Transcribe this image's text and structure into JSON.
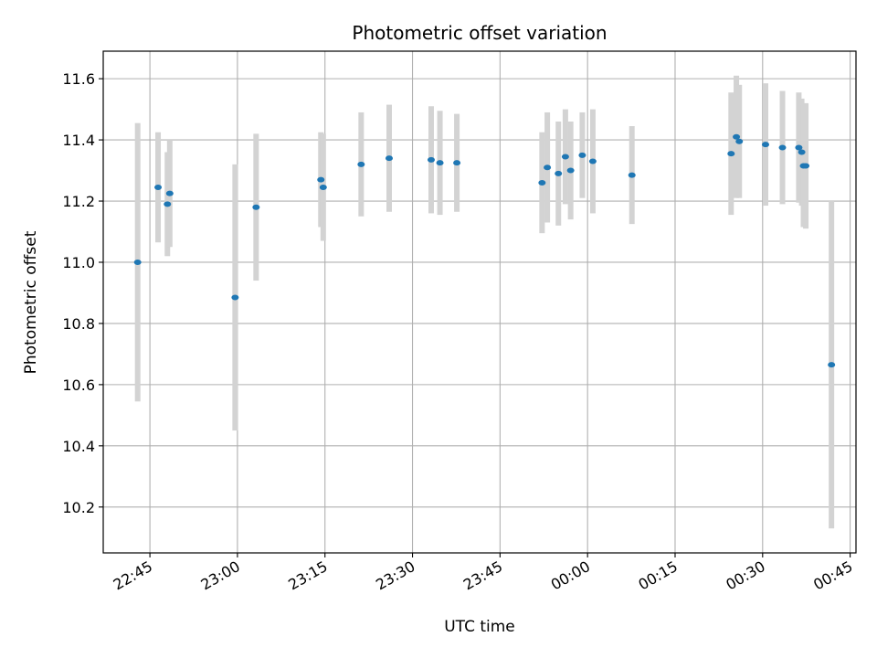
{
  "chart_data": {
    "type": "scatter",
    "title": "Photometric offset variation",
    "xlabel": "UTC time",
    "ylabel": "Photometric offset",
    "x_ticks": [
      "22:45",
      "23:00",
      "23:15",
      "23:30",
      "23:45",
      "00:00",
      "00:15",
      "00:30",
      "00:45"
    ],
    "x_tick_minutes": [
      0,
      15,
      30,
      45,
      60,
      75,
      90,
      105,
      120
    ],
    "y_ticks": [
      "10.2",
      "10.4",
      "10.6",
      "10.8",
      "11.0",
      "11.2",
      "11.4",
      "11.6"
    ],
    "y_tick_values": [
      10.2,
      10.4,
      10.6,
      10.8,
      11.0,
      11.2,
      11.4,
      11.6
    ],
    "xlim_minutes": [
      -8.0,
      121.0
    ],
    "ylim": [
      10.05,
      11.69
    ],
    "grid": true,
    "colors": {
      "point": "#1f77b4",
      "errorbar": "#d3d3d3",
      "grid": "#b0b0b0"
    },
    "points": [
      {
        "t": -2.1,
        "y": 11.0,
        "err": 0.455
      },
      {
        "t": 1.4,
        "y": 11.245,
        "err": 0.18
      },
      {
        "t": 3.0,
        "y": 11.19,
        "err": 0.17
      },
      {
        "t": 3.4,
        "y": 11.225,
        "err": 0.175
      },
      {
        "t": 14.6,
        "y": 10.885,
        "err": 0.435
      },
      {
        "t": 18.2,
        "y": 11.18,
        "err": 0.24
      },
      {
        "t": 29.3,
        "y": 11.27,
        "err": 0.155
      },
      {
        "t": 29.7,
        "y": 11.245,
        "err": 0.175
      },
      {
        "t": 36.2,
        "y": 11.32,
        "err": 0.17
      },
      {
        "t": 41.0,
        "y": 11.34,
        "err": 0.175
      },
      {
        "t": 48.2,
        "y": 11.335,
        "err": 0.175
      },
      {
        "t": 49.7,
        "y": 11.325,
        "err": 0.17
      },
      {
        "t": 52.6,
        "y": 11.325,
        "err": 0.16
      },
      {
        "t": 67.2,
        "y": 11.26,
        "err": 0.165
      },
      {
        "t": 68.1,
        "y": 11.31,
        "err": 0.18
      },
      {
        "t": 70.0,
        "y": 11.29,
        "err": 0.17
      },
      {
        "t": 71.2,
        "y": 11.345,
        "err": 0.155
      },
      {
        "t": 72.1,
        "y": 11.3,
        "err": 0.16
      },
      {
        "t": 74.1,
        "y": 11.35,
        "err": 0.14
      },
      {
        "t": 75.9,
        "y": 11.33,
        "err": 0.17
      },
      {
        "t": 82.6,
        "y": 11.285,
        "err": 0.16
      },
      {
        "t": 99.6,
        "y": 11.355,
        "err": 0.2
      },
      {
        "t": 100.5,
        "y": 11.41,
        "err": 0.2
      },
      {
        "t": 101.0,
        "y": 11.395,
        "err": 0.185
      },
      {
        "t": 105.5,
        "y": 11.385,
        "err": 0.2
      },
      {
        "t": 108.4,
        "y": 11.375,
        "err": 0.185
      },
      {
        "t": 111.2,
        "y": 11.375,
        "err": 0.18
      },
      {
        "t": 111.7,
        "y": 11.36,
        "err": 0.175
      },
      {
        "t": 112.0,
        "y": 11.315,
        "err": 0.2
      },
      {
        "t": 112.4,
        "y": 11.315,
        "err": 0.205
      },
      {
        "t": 116.8,
        "y": 10.665,
        "err": 0.535
      }
    ]
  }
}
